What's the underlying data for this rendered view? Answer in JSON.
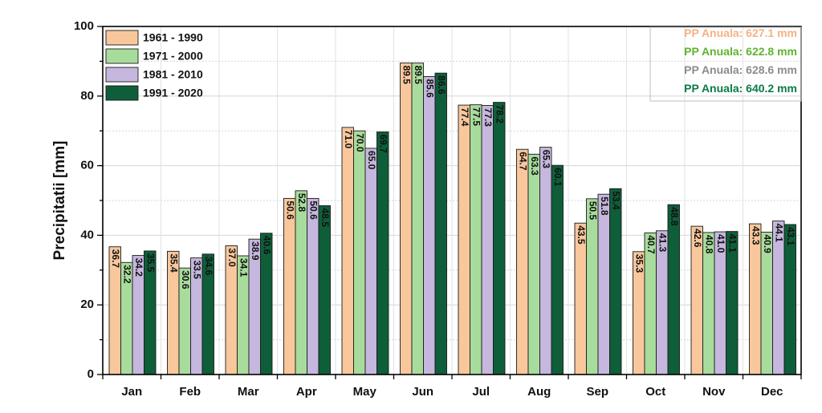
{
  "chart_data": {
    "type": "bar",
    "ylabel": "Precipitatii [mm]",
    "xlabel": "",
    "ylim": [
      0,
      100
    ],
    "yticks": [
      0,
      20,
      40,
      60,
      80,
      100
    ],
    "grid": true,
    "legend_position": "top-left",
    "categories": [
      "Jan",
      "Feb",
      "Mar",
      "Apr",
      "May",
      "Jun",
      "Jul",
      "Aug",
      "Sep",
      "Oct",
      "Nov",
      "Dec"
    ],
    "series": [
      {
        "name": "1961 - 1990",
        "color": "#f8c79c",
        "values": [
          36.7,
          35.4,
          37.0,
          50.6,
          71.0,
          89.5,
          77.4,
          64.7,
          43.5,
          35.3,
          42.6,
          43.3
        ]
      },
      {
        "name": "1971 - 2000",
        "color": "#a8dc9c",
        "values": [
          32.2,
          30.6,
          34.1,
          52.8,
          70.0,
          89.5,
          77.5,
          63.3,
          50.5,
          40.7,
          40.8,
          40.9
        ]
      },
      {
        "name": "1981 - 2010",
        "color": "#c6b7de",
        "values": [
          34.2,
          33.5,
          38.9,
          50.6,
          65.0,
          85.6,
          77.3,
          65.3,
          51.8,
          41.3,
          41.0,
          44.1
        ]
      },
      {
        "name": "1991 - 2020",
        "color": "#0e5e3a",
        "values": [
          35.5,
          34.6,
          40.6,
          48.5,
          69.7,
          86.6,
          78.2,
          60.1,
          53.4,
          48.8,
          41.1,
          43.1
        ]
      }
    ],
    "annotations": [
      {
        "text": "PP Anuala: 627.1 mm",
        "color": "#f4b183"
      },
      {
        "text": "PP Anuala: 622.8 mm",
        "color": "#5fb32f"
      },
      {
        "text": "PP Anuala: 628.6 mm",
        "color": "#8c8c8c"
      },
      {
        "text": "PP Anuala: 640.2 mm",
        "color": "#0b7a44"
      }
    ]
  }
}
